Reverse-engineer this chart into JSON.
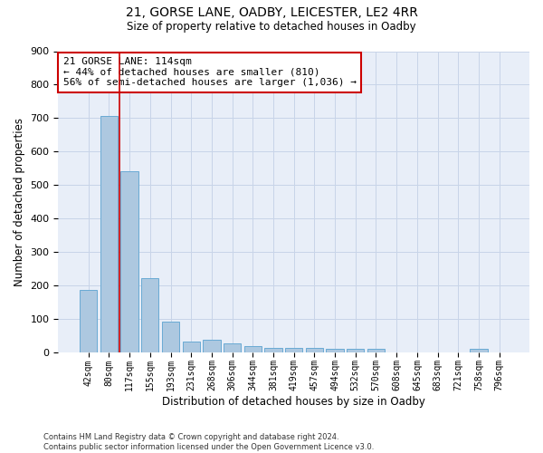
{
  "title_line1": "21, GORSE LANE, OADBY, LEICESTER, LE2 4RR",
  "title_line2": "Size of property relative to detached houses in Oadby",
  "xlabel": "Distribution of detached houses by size in Oadby",
  "ylabel": "Number of detached properties",
  "categories": [
    "42sqm",
    "80sqm",
    "117sqm",
    "155sqm",
    "193sqm",
    "231sqm",
    "268sqm",
    "306sqm",
    "344sqm",
    "381sqm",
    "419sqm",
    "457sqm",
    "494sqm",
    "532sqm",
    "570sqm",
    "608sqm",
    "645sqm",
    "683sqm",
    "721sqm",
    "758sqm",
    "796sqm"
  ],
  "values": [
    185,
    707,
    540,
    221,
    91,
    30,
    38,
    25,
    17,
    13,
    13,
    12,
    10,
    10,
    9,
    0,
    0,
    0,
    0,
    9,
    0
  ],
  "bar_color": "#adc8e0",
  "bar_edge_color": "#6aaad4",
  "grid_color": "#c8d4e8",
  "vline_x": 1.5,
  "vline_color": "#cc0000",
  "annotation_text": "21 GORSE LANE: 114sqm\n← 44% of detached houses are smaller (810)\n56% of semi-detached houses are larger (1,036) →",
  "annotation_box_color": "#ffffff",
  "annotation_box_edge": "#cc0000",
  "ylim": [
    0,
    900
  ],
  "yticks": [
    0,
    100,
    200,
    300,
    400,
    500,
    600,
    700,
    800,
    900
  ],
  "footer": "Contains HM Land Registry data © Crown copyright and database right 2024.\nContains public sector information licensed under the Open Government Licence v3.0.",
  "bg_color": "#e8eef8",
  "fig_bg_color": "#ffffff"
}
